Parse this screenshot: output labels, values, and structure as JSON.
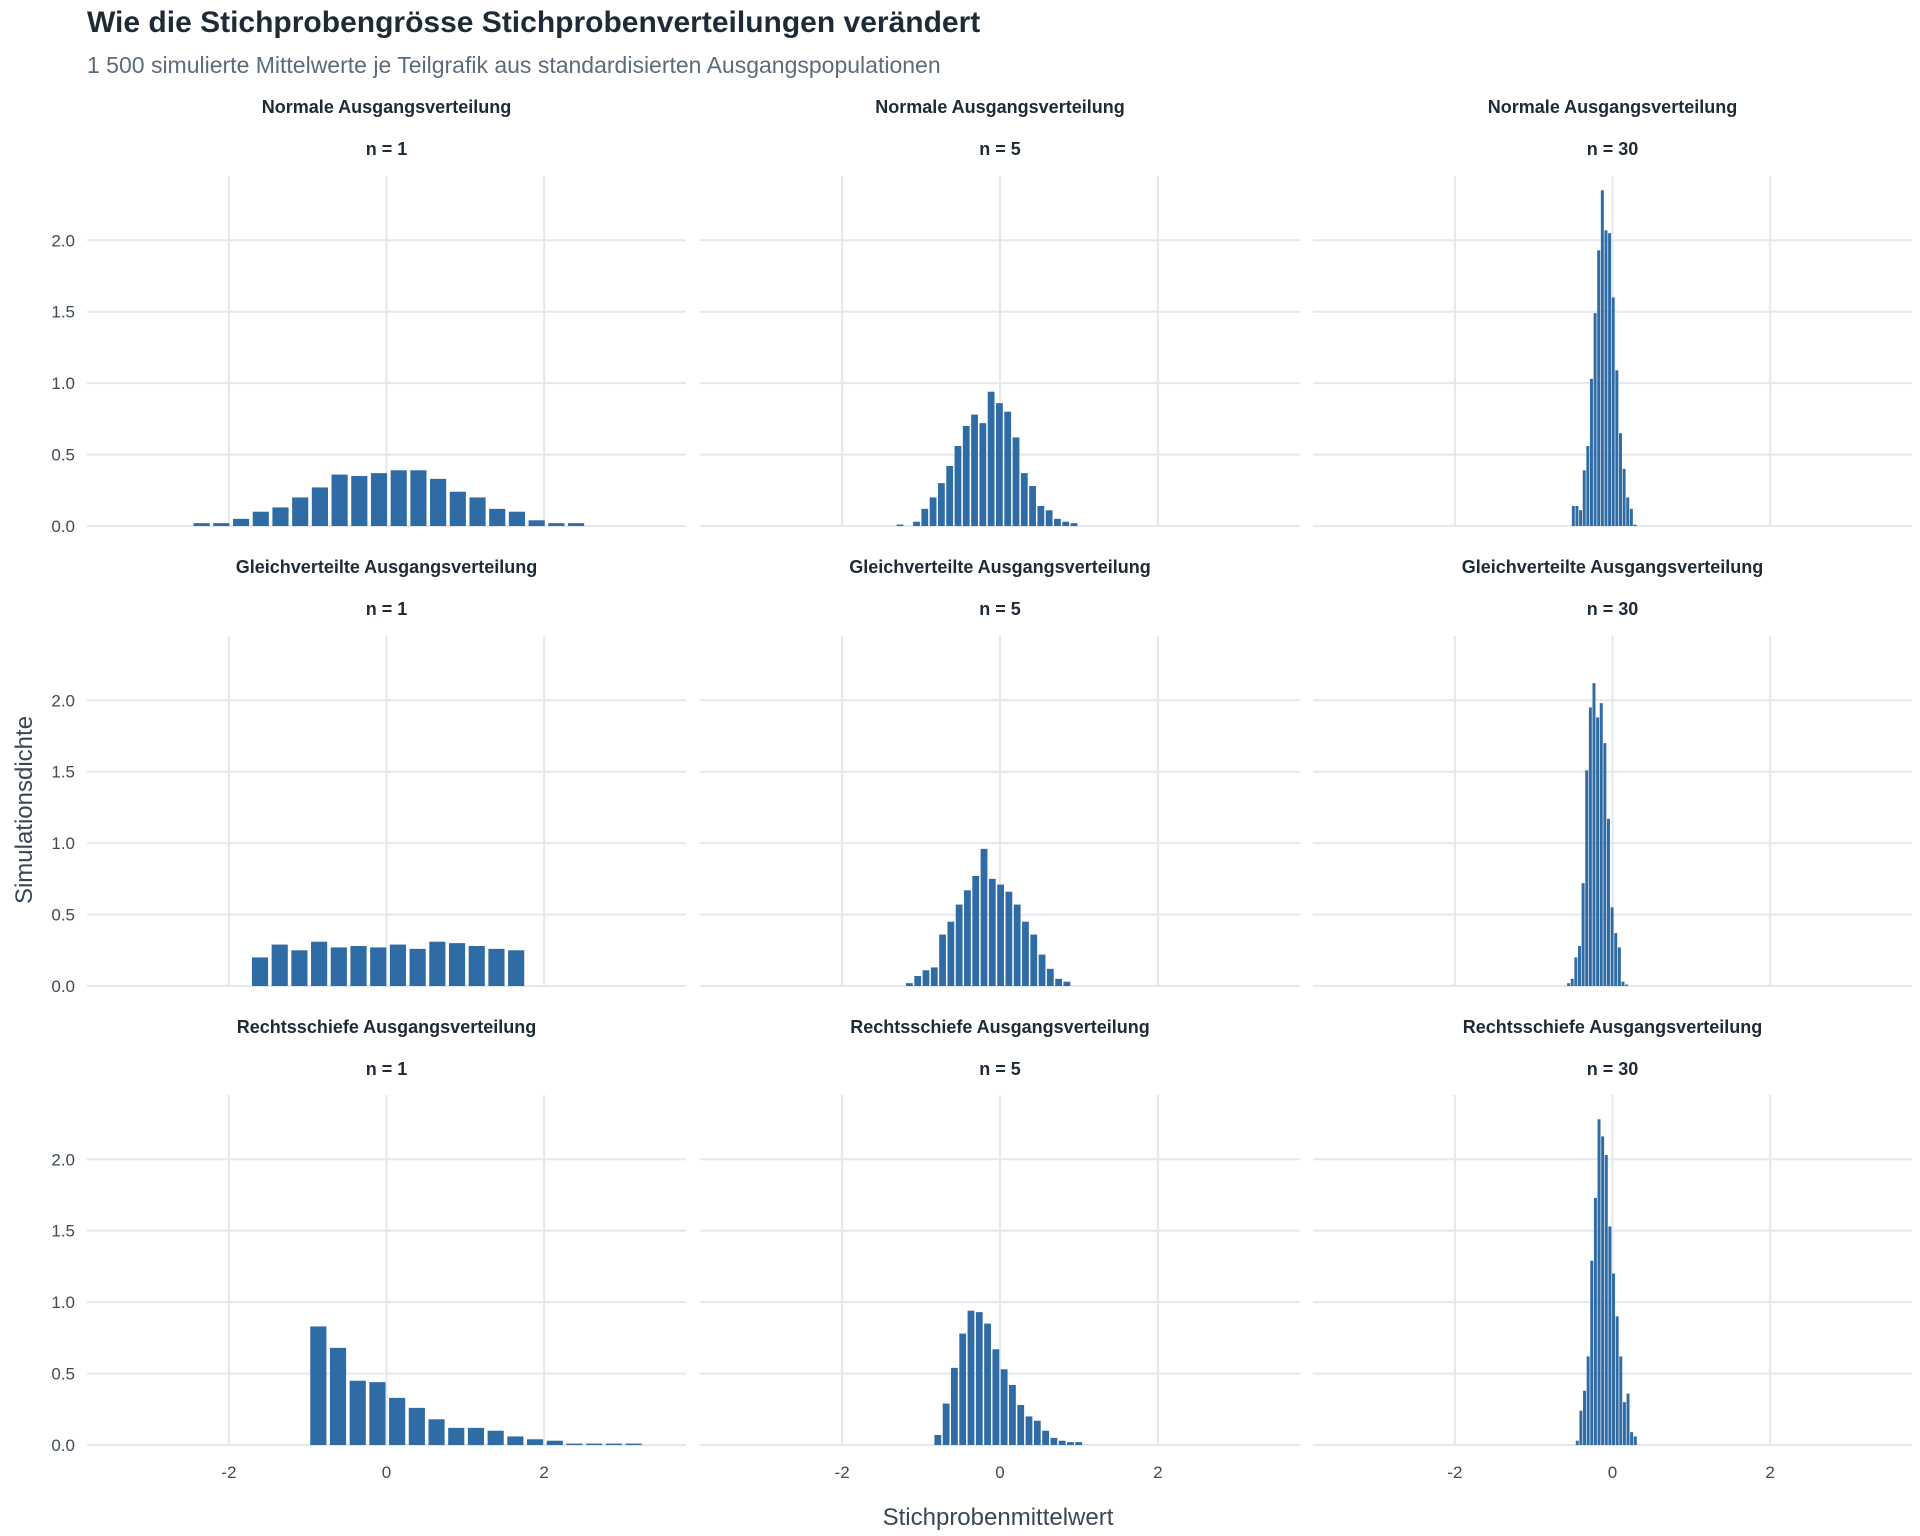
{
  "title": "Wie die Stichprobengrösse Stichprobenverteilungen verändert",
  "subtitle": "1 500 simulierte Mittelwerte je Teilgrafik aus standardisierten Ausgangspopulationen",
  "colors": {
    "bar": "#2f6ba4",
    "grid": "#e3e8ee",
    "text": "#1e2a36",
    "subtle": "#5d6b79"
  },
  "chart_data": {
    "type": "bar",
    "xlabel": "Stichprobenmittelwert",
    "ylabel": "Simulationsdichte",
    "xlim": [
      -3.8,
      3.8
    ],
    "ylim": [
      0,
      2.45
    ],
    "x_ticks": [
      -2,
      0,
      2
    ],
    "x_tick_labels": [
      "-2",
      "0",
      "2"
    ],
    "y_ticks": [
      0,
      0.5,
      1,
      1.5,
      2
    ],
    "y_tick_labels": [
      "0.0",
      "0.5",
      "1.0",
      "1.5",
      "2.0"
    ],
    "grid": true,
    "rows": [
      "Normale Ausgangsverteilung",
      "Gleichverteilte Ausgangsverteilung",
      "Rechtsschiefe Ausgangsverteilung"
    ],
    "cols": [
      "n = 1",
      "n = 5",
      "n = 30"
    ],
    "panels": [
      {
        "row": "Normale Ausgangsverteilung",
        "col": "n = 1",
        "x_start": -2.47,
        "bin_width": 0.25,
        "values": [
          0.02,
          0.02,
          0.05,
          0.1,
          0.13,
          0.2,
          0.27,
          0.36,
          0.35,
          0.37,
          0.39,
          0.39,
          0.33,
          0.24,
          0.2,
          0.12,
          0.1,
          0.04,
          0.02,
          0.02
        ]
      },
      {
        "row": "Normale Ausgangsverteilung",
        "col": "n = 5",
        "x_start": -1.32,
        "bin_width": 0.105,
        "values": [
          0.01,
          0,
          0.03,
          0.12,
          0.2,
          0.3,
          0.42,
          0.56,
          0.7,
          0.78,
          0.72,
          0.94,
          0.86,
          0.8,
          0.62,
          0.37,
          0.28,
          0.14,
          0.11,
          0.05,
          0.03,
          0.02
        ]
      },
      {
        "row": "Normale Ausgangsverteilung",
        "col": "n = 30",
        "x_start": -0.52,
        "bin_width": 0.046,
        "values": [
          0.14,
          0.14,
          0.11,
          0.39,
          0.56,
          1.03,
          1.49,
          1.93,
          2.35,
          2.07,
          2.05,
          1.6,
          1.09,
          0.65,
          0.4,
          0.2,
          0.12,
          0.01
        ]
      },
      {
        "row": "Gleichverteilte Ausgangsverteilung",
        "col": "n = 1",
        "x_start": -1.73,
        "bin_width": 0.25,
        "values": [
          0.2,
          0.29,
          0.25,
          0.31,
          0.27,
          0.28,
          0.27,
          0.29,
          0.26,
          0.31,
          0.3,
          0.28,
          0.26,
          0.25
        ]
      },
      {
        "row": "Gleichverteilte Ausgangsverteilung",
        "col": "n = 5",
        "x_start": -1.2,
        "bin_width": 0.105,
        "values": [
          0.02,
          0.07,
          0.11,
          0.13,
          0.36,
          0.45,
          0.57,
          0.67,
          0.77,
          0.96,
          0.75,
          0.71,
          0.66,
          0.57,
          0.45,
          0.36,
          0.22,
          0.12,
          0.05,
          0.03
        ]
      },
      {
        "row": "Gleichverteilte Ausgangsverteilung",
        "col": "n = 30",
        "x_start": -0.58,
        "bin_width": 0.046,
        "values": [
          0.02,
          0.05,
          0.2,
          0.28,
          0.72,
          1.51,
          1.95,
          2.12,
          1.88,
          1.98,
          1.7,
          1.17,
          0.55,
          0.37,
          0.27,
          0.03,
          0.01
        ]
      },
      {
        "row": "Rechtsschiefe Ausgangsverteilung",
        "col": "n = 1",
        "x_start": -0.99,
        "bin_width": 0.25,
        "values": [
          0.83,
          0.68,
          0.45,
          0.44,
          0.33,
          0.26,
          0.18,
          0.12,
          0.12,
          0.1,
          0.06,
          0.04,
          0.03,
          0.01,
          0.01,
          0.01,
          0.01
        ]
      },
      {
        "row": "Rechtsschiefe Ausgangsverteilung",
        "col": "n = 5",
        "x_start": -0.84,
        "bin_width": 0.105,
        "values": [
          0.07,
          0.29,
          0.54,
          0.78,
          0.94,
          0.93,
          0.85,
          0.67,
          0.53,
          0.42,
          0.28,
          0.2,
          0.17,
          0.1,
          0.05,
          0.03,
          0.02,
          0.02
        ]
      },
      {
        "row": "Rechtsschiefe Ausgangsverteilung",
        "col": "n = 30",
        "x_start": -0.47,
        "bin_width": 0.046,
        "values": [
          0.03,
          0.24,
          0.38,
          0.62,
          1.29,
          1.73,
          2.28,
          2.16,
          2.03,
          1.53,
          1.2,
          0.9,
          0.62,
          0.3,
          0.36,
          0.09,
          0.06
        ]
      }
    ]
  }
}
